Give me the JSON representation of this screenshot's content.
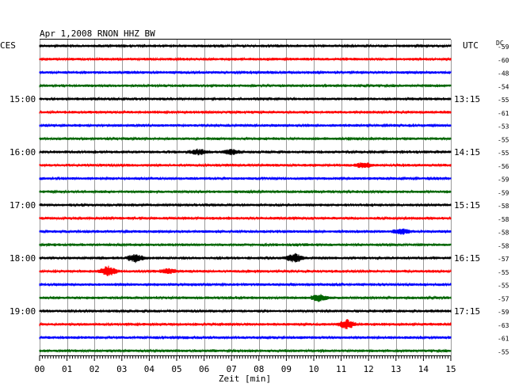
{
  "chart_data": {
    "type": "line",
    "title": "Apr 1,2008   RNON HHZ BW",
    "left_timezone": "CES",
    "right_timezone": "UTC",
    "dc_label": "DC",
    "xlabel": "Zeit [min]",
    "x_ticks": [
      "00",
      "01",
      "02",
      "03",
      "04",
      "05",
      "06",
      "07",
      "08",
      "09",
      "10",
      "11",
      "12",
      "13",
      "14",
      "15"
    ],
    "xlim": [
      0,
      15
    ],
    "left_hour_labels": [
      {
        "row": 4,
        "label": "15:00"
      },
      {
        "row": 8,
        "label": "16:00"
      },
      {
        "row": 12,
        "label": "17:00"
      },
      {
        "row": 16,
        "label": "18:00"
      },
      {
        "row": 20,
        "label": "19:00"
      }
    ],
    "right_hour_labels": [
      {
        "row": 4,
        "label": "13:15"
      },
      {
        "row": 8,
        "label": "14:15"
      },
      {
        "row": 12,
        "label": "15:15"
      },
      {
        "row": 16,
        "label": "16:15"
      },
      {
        "row": 20,
        "label": "17:15"
      }
    ],
    "dc_offsets": [
      "-59",
      "-60",
      "-48",
      "-54",
      "-55",
      "-61",
      "-53",
      "-55",
      "-55",
      "-56",
      "-59",
      "-59",
      "-58",
      "-58",
      "-58",
      "-58",
      "-57",
      "-55",
      "-55",
      "-57",
      "-59",
      "-63",
      "-61",
      "-55"
    ],
    "trace_colors": [
      "#000000",
      "#ff0000",
      "#0000ff",
      "#006400"
    ],
    "events": [
      {
        "row": 16,
        "minute": 3.5,
        "amplitude": 5
      },
      {
        "row": 16,
        "minute": 9.3,
        "amplitude": 5
      },
      {
        "row": 17,
        "minute": 2.5,
        "amplitude": 6
      },
      {
        "row": 17,
        "minute": 4.7,
        "amplitude": 3
      },
      {
        "row": 21,
        "minute": 11.2,
        "amplitude": 5
      },
      {
        "row": 9,
        "minute": 11.8,
        "amplitude": 3
      },
      {
        "row": 8,
        "minute": 7.0,
        "amplitude": 3
      },
      {
        "row": 8,
        "minute": 5.8,
        "amplitude": 3
      },
      {
        "row": 19,
        "minute": 10.2,
        "amplitude": 4
      },
      {
        "row": 14,
        "minute": 13.2,
        "amplitude": 3
      }
    ]
  }
}
